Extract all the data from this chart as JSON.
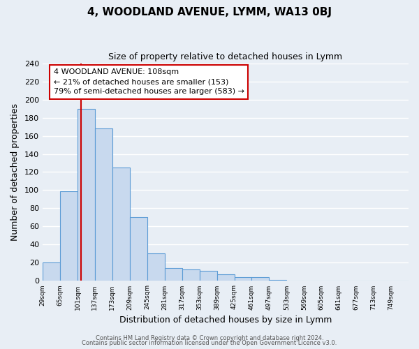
{
  "title": "4, WOODLAND AVENUE, LYMM, WA13 0BJ",
  "subtitle": "Size of property relative to detached houses in Lymm",
  "xlabel": "Distribution of detached houses by size in Lymm",
  "ylabel": "Number of detached properties",
  "bin_labels": [
    "29sqm",
    "65sqm",
    "101sqm",
    "137sqm",
    "173sqm",
    "209sqm",
    "245sqm",
    "281sqm",
    "317sqm",
    "353sqm",
    "389sqm",
    "425sqm",
    "461sqm",
    "497sqm",
    "533sqm",
    "569sqm",
    "605sqm",
    "641sqm",
    "677sqm",
    "713sqm",
    "749sqm"
  ],
  "bar_heights": [
    20,
    99,
    190,
    168,
    125,
    70,
    30,
    14,
    13,
    11,
    7,
    4,
    4,
    1,
    0,
    0,
    0,
    0,
    0,
    0,
    0
  ],
  "bar_color": "#c8d9ee",
  "bar_edge_color": "#5b9bd5",
  "vline_color": "#cc0000",
  "annotation_title": "4 WOODLAND AVENUE: 108sqm",
  "annotation_line1": "← 21% of detached houses are smaller (153)",
  "annotation_line2": "79% of semi-detached houses are larger (583) →",
  "annotation_box_color": "#ffffff",
  "annotation_box_edge": "#cc0000",
  "ylim": [
    0,
    240
  ],
  "yticks": [
    0,
    20,
    40,
    60,
    80,
    100,
    120,
    140,
    160,
    180,
    200,
    220,
    240
  ],
  "footer1": "Contains HM Land Registry data © Crown copyright and database right 2024.",
  "footer2": "Contains public sector information licensed under the Open Government Licence v3.0.",
  "outer_bg_color": "#e8eef5",
  "plot_bg_color": "#e8eef5",
  "grid_color": "#ffffff"
}
